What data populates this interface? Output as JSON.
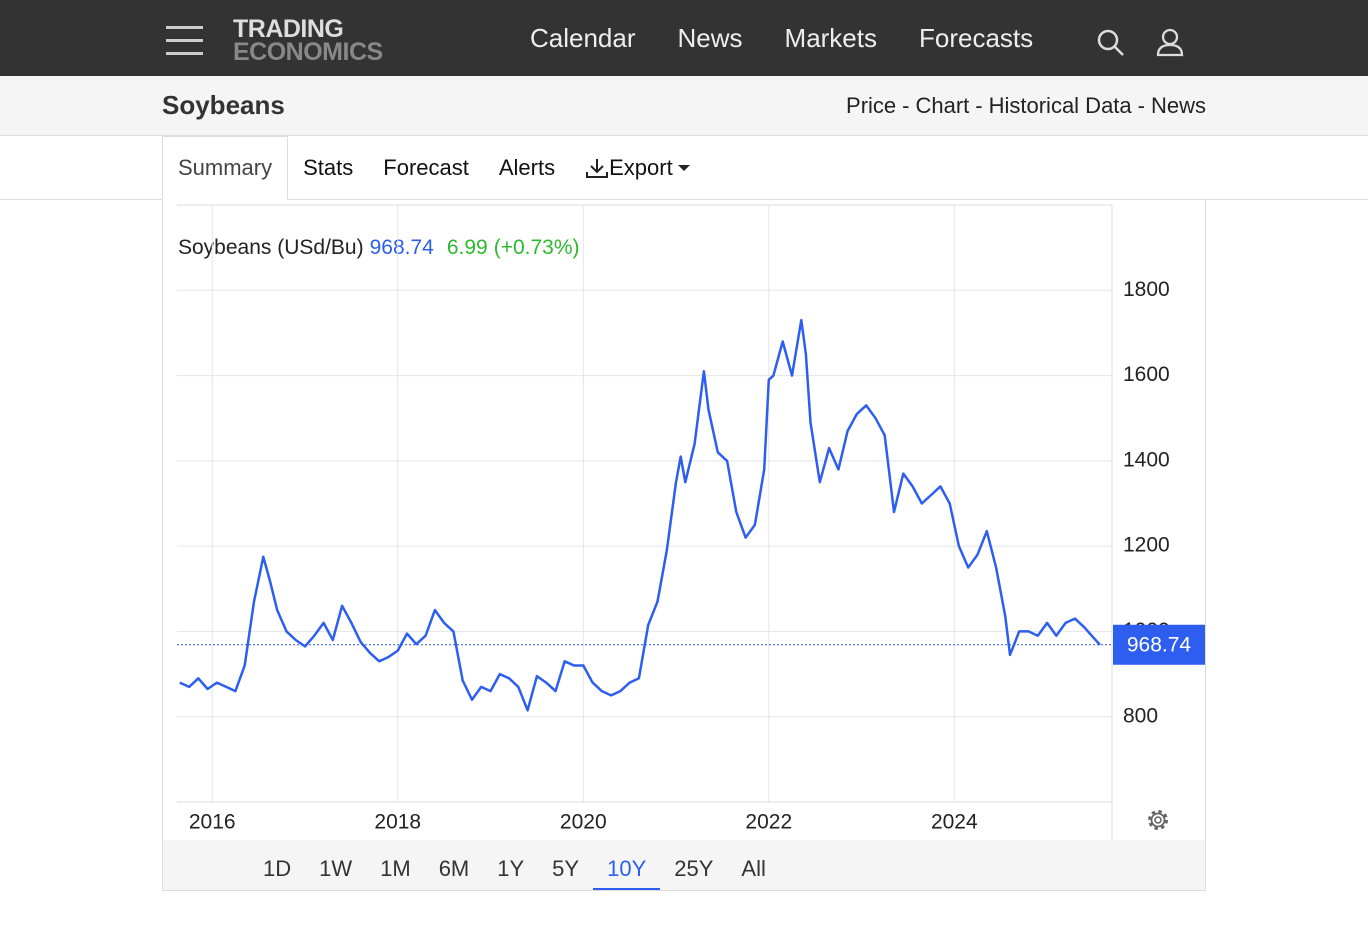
{
  "nav": {
    "logo": [
      "TRADING",
      "ECONOMICS"
    ],
    "links": [
      "Calendar",
      "News",
      "Markets",
      "Forecasts"
    ]
  },
  "header": {
    "title": "Soybeans",
    "links": [
      "Price",
      "Chart",
      "Historical Data",
      "News"
    ],
    "separator": "-"
  },
  "tabs": {
    "items": [
      "Summary",
      "Stats",
      "Forecast",
      "Alerts",
      "Export"
    ],
    "active": "Summary"
  },
  "chart_data": {
    "type": "line",
    "x": [
      2015.65,
      2015.75,
      2015.85,
      2015.95,
      2016.05,
      2016.15,
      2016.25,
      2016.35,
      2016.45,
      2016.55,
      2016.62,
      2016.7,
      2016.8,
      2016.9,
      2017.0,
      2017.1,
      2017.2,
      2017.3,
      2017.4,
      2017.5,
      2017.6,
      2017.7,
      2017.8,
      2017.9,
      2018.0,
      2018.1,
      2018.2,
      2018.3,
      2018.4,
      2018.5,
      2018.6,
      2018.7,
      2018.8,
      2018.9,
      2019.0,
      2019.1,
      2019.2,
      2019.3,
      2019.4,
      2019.5,
      2019.6,
      2019.7,
      2019.8,
      2019.9,
      2020.0,
      2020.1,
      2020.2,
      2020.3,
      2020.4,
      2020.5,
      2020.6,
      2020.7,
      2020.8,
      2020.9,
      2021.0,
      2021.05,
      2021.1,
      2021.2,
      2021.3,
      2021.35,
      2021.45,
      2021.55,
      2021.65,
      2021.75,
      2021.85,
      2021.95,
      2022.0,
      2022.05,
      2022.15,
      2022.25,
      2022.35,
      2022.4,
      2022.45,
      2022.55,
      2022.65,
      2022.75,
      2022.85,
      2022.95,
      2023.05,
      2023.15,
      2023.25,
      2023.35,
      2023.45,
      2023.55,
      2023.65,
      2023.75,
      2023.85,
      2023.95,
      2024.05,
      2024.15,
      2024.25,
      2024.35,
      2024.45,
      2024.55,
      2024.6,
      2024.7,
      2024.8,
      2024.9,
      2025.0,
      2025.1,
      2025.2,
      2025.3,
      2025.4,
      2025.57
    ],
    "series": [
      {
        "name": "Soybeans (USd/Bu)",
        "color": "#2d5ef0",
        "values": [
          880,
          870,
          890,
          865,
          880,
          870,
          860,
          920,
          1070,
          1175,
          1120,
          1050,
          1000,
          980,
          965,
          990,
          1020,
          980,
          1060,
          1020,
          975,
          950,
          930,
          940,
          955,
          995,
          970,
          990,
          1050,
          1020,
          1000,
          885,
          840,
          870,
          860,
          900,
          890,
          870,
          815,
          895,
          880,
          860,
          930,
          920,
          920,
          880,
          860,
          850,
          860,
          880,
          890,
          1015,
          1070,
          1190,
          1350,
          1410,
          1350,
          1440,
          1610,
          1520,
          1420,
          1400,
          1280,
          1220,
          1250,
          1380,
          1590,
          1600,
          1680,
          1600,
          1730,
          1650,
          1490,
          1350,
          1430,
          1380,
          1470,
          1510,
          1530,
          1500,
          1460,
          1280,
          1370,
          1340,
          1300,
          1320,
          1340,
          1300,
          1200,
          1150,
          1180,
          1235,
          1150,
          1035,
          945,
          1000,
          1000,
          990,
          1020,
          990,
          1020,
          1030,
          1010,
          968.74
        ]
      }
    ],
    "xlim": [
      2015.62,
      2025.7
    ],
    "xticks": [
      2016,
      2018,
      2020,
      2022,
      2024
    ],
    "ylim": [
      600,
      2000
    ],
    "yticks": [
      800,
      1000,
      1200,
      1400,
      1600,
      1800
    ],
    "grid": true,
    "last_value": 968.74,
    "last_value_color": "#2d5ef0",
    "change": 6.99,
    "change_percent": {
      "value": 0.73,
      "label": "(+0.73%)"
    },
    "change_color": "#2eb82e"
  },
  "ranges": {
    "items": [
      "1D",
      "1W",
      "1M",
      "6M",
      "1Y",
      "5Y",
      "10Y",
      "25Y",
      "All"
    ],
    "active": "10Y"
  }
}
